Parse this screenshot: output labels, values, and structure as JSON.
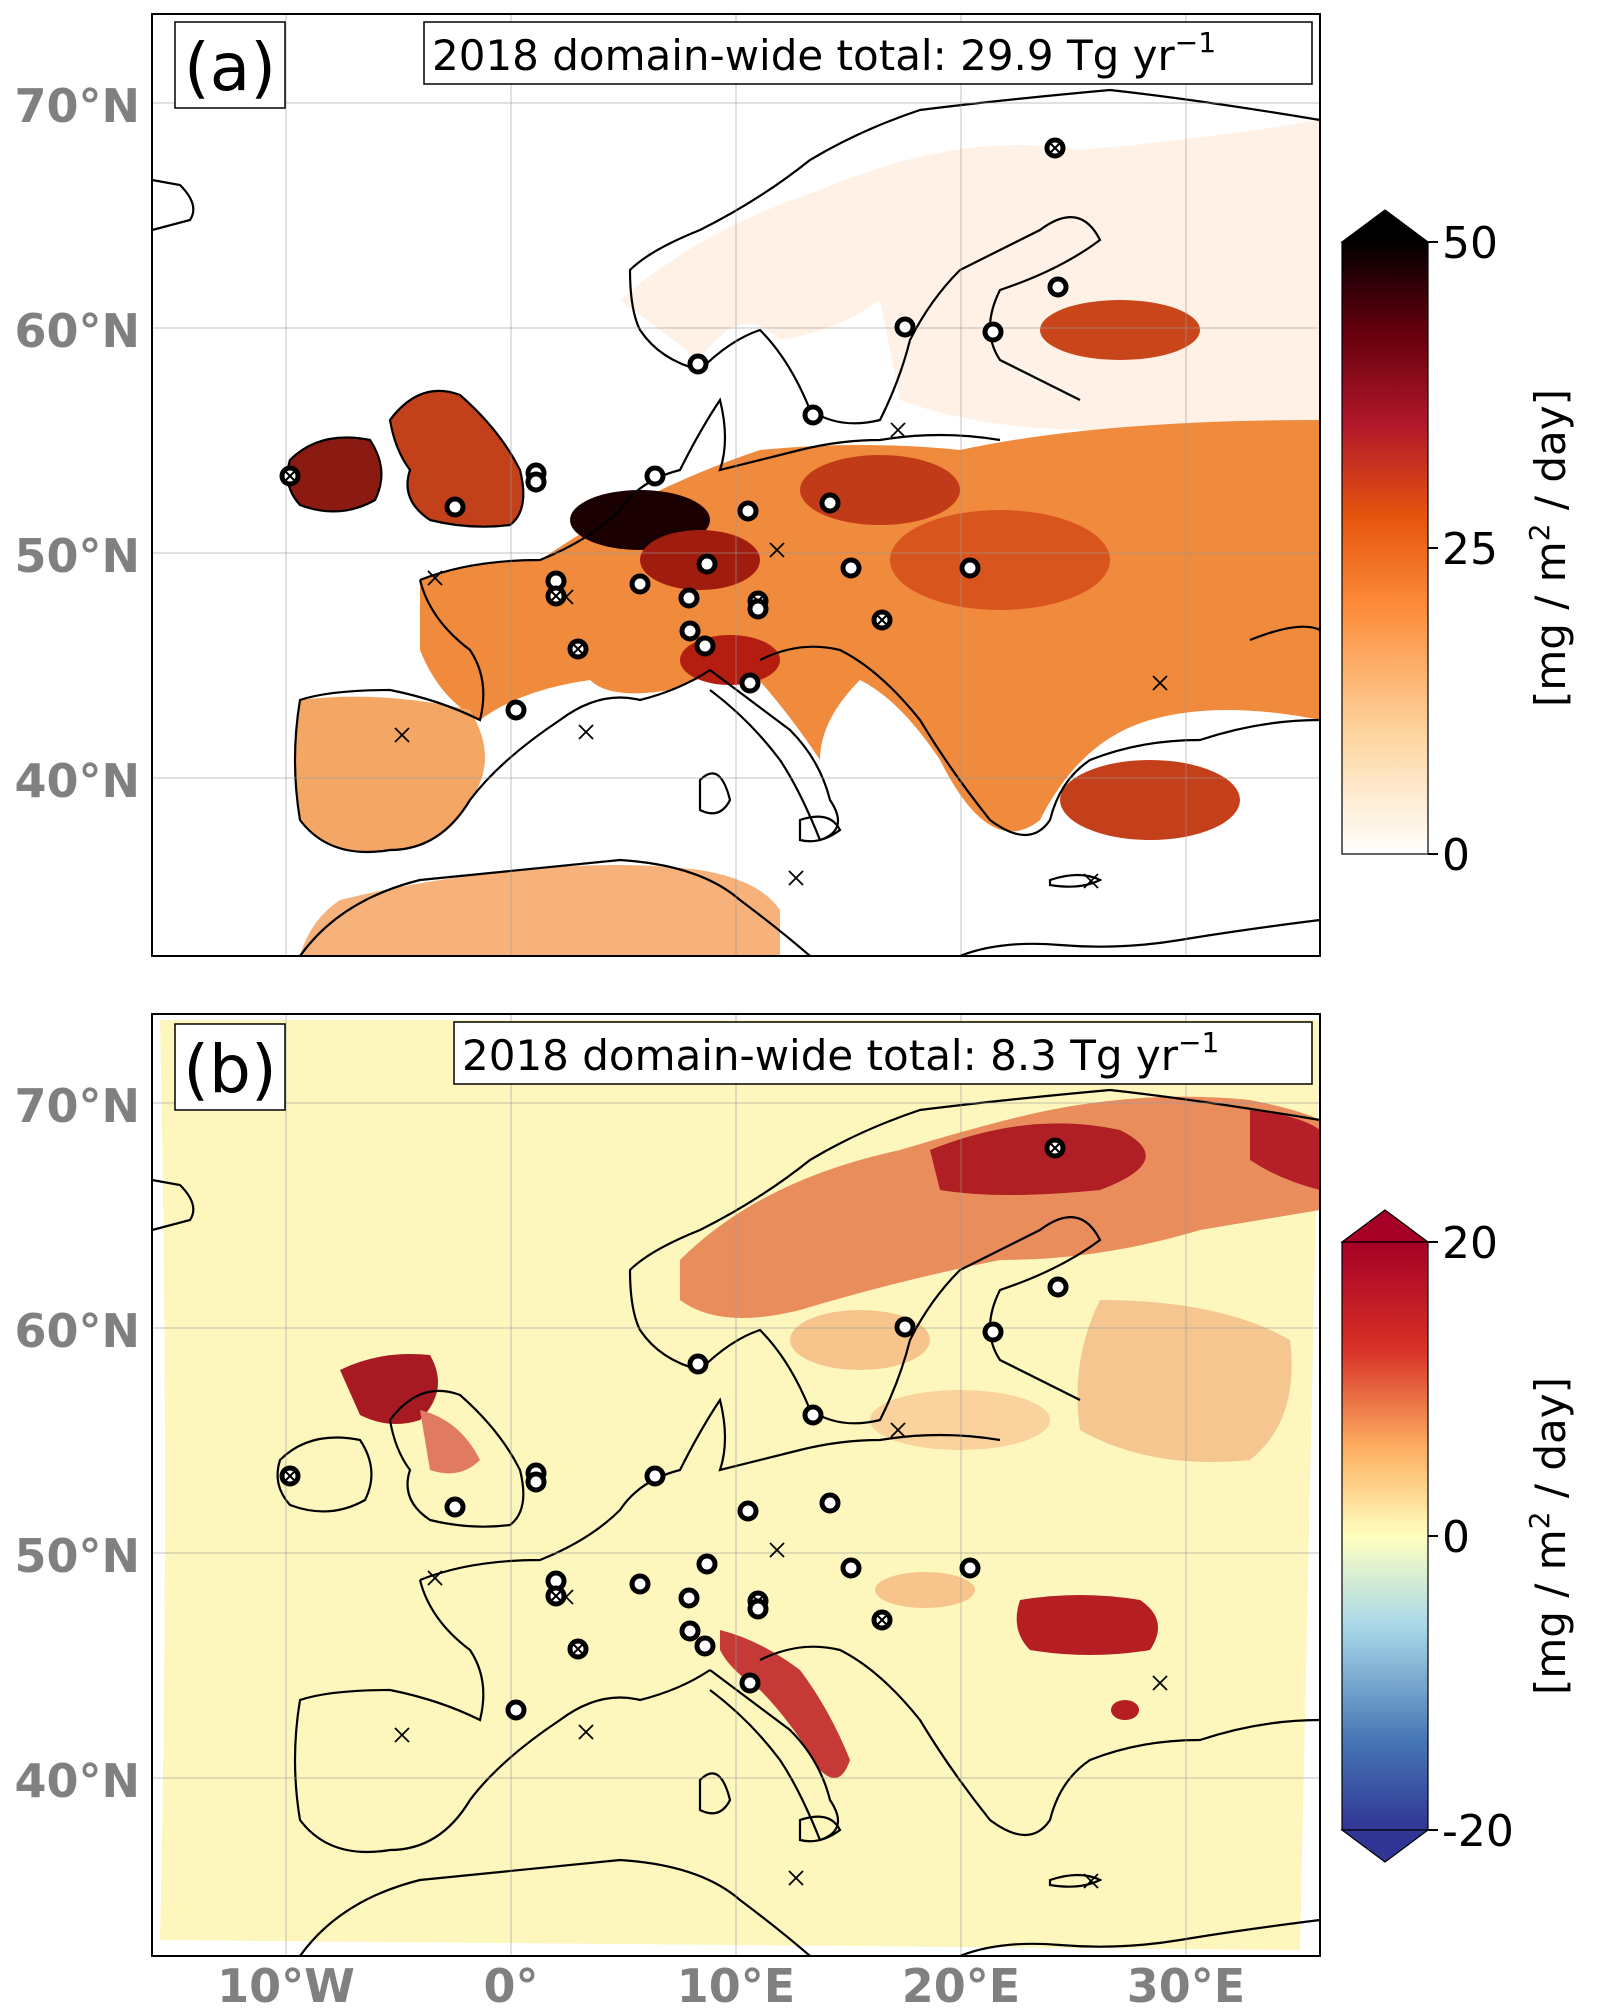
{
  "x_ticks": [
    "10°W",
    "0°",
    "10°E",
    "20°E",
    "30°E"
  ],
  "y_ticks": [
    "70°N",
    "60°N",
    "50°N",
    "40°N"
  ],
  "panels": [
    {
      "letter": "(a)",
      "title_prefix": "2018 domain-wide total: 29.9 Tg yr",
      "title_sup": "−1",
      "colorbar": {
        "ticks": [
          "50",
          "25",
          "0"
        ],
        "label_pre": "[mg / m",
        "label_sup": "2",
        "label_post": " / day]",
        "colors": [
          "#ffffff",
          "#fdd49e",
          "#fd8d3c",
          "#e6550d",
          "#b2182b",
          "#67000d",
          "#000000"
        ]
      }
    },
    {
      "letter": "(b)",
      "title_prefix": "2018 domain-wide total: 8.3 Tg yr",
      "title_sup": "−1",
      "colorbar": {
        "ticks": [
          "20",
          "0",
          "-20"
        ],
        "label_pre": "[mg / m",
        "label_sup": "2",
        "label_post": " / day]",
        "colors": [
          "#313695",
          "#4575b4",
          "#abd9e9",
          "#ffffbf",
          "#fdae61",
          "#d73027",
          "#a50026"
        ]
      }
    }
  ]
}
